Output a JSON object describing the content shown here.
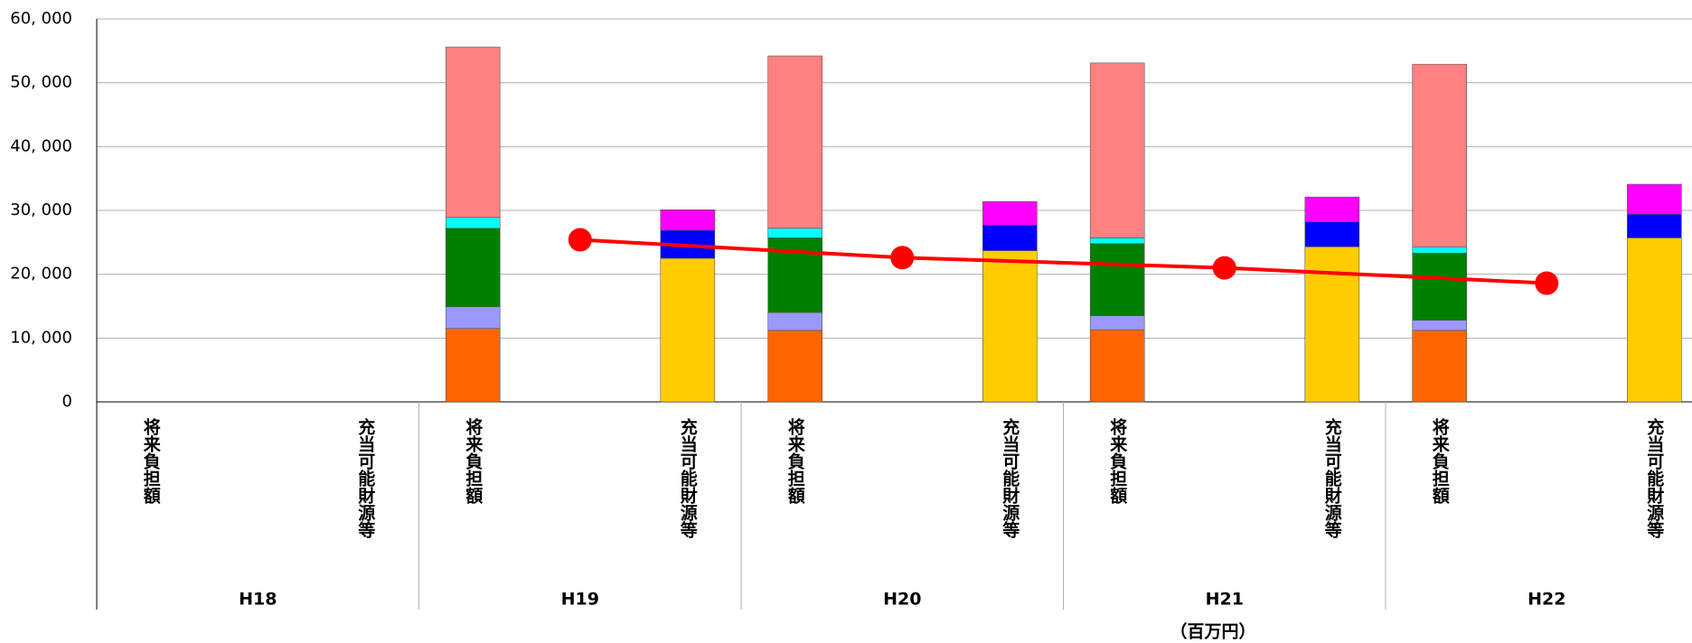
{
  "chart_data": {
    "type": "bar",
    "groups": [
      "H18",
      "H19",
      "H20",
      "H21",
      "H22"
    ],
    "categories": [
      "将来負担額",
      "充当可能財源等",
      "将来負担額",
      "充当可能財源等",
      "将来負担額",
      "充当可能財源等",
      "将来負担額",
      "充当可能財源等",
      "将来負担額",
      "充当可能財源等"
    ],
    "series": [
      {
        "color": "#ff6600",
        "values": [
          null,
          null,
          11500,
          null,
          11200,
          null,
          11300,
          null,
          11200,
          null
        ]
      },
      {
        "color": "#9999ff",
        "values": [
          null,
          null,
          3400,
          null,
          2800,
          null,
          2200,
          null,
          1600,
          null
        ]
      },
      {
        "color": "#008000",
        "values": [
          null,
          null,
          12300,
          null,
          11700,
          null,
          11300,
          null,
          10500,
          null
        ]
      },
      {
        "color": "#00ffff",
        "values": [
          null,
          null,
          1700,
          null,
          1500,
          null,
          900,
          null,
          1000,
          null
        ]
      },
      {
        "color": "#ff8080",
        "values": [
          null,
          null,
          26700,
          null,
          27000,
          null,
          27400,
          null,
          28600,
          null
        ]
      },
      {
        "color": "#ffcc00",
        "values": [
          null,
          null,
          null,
          22500,
          null,
          23700,
          null,
          24300,
          null,
          25700
        ]
      },
      {
        "color": "#0000ff",
        "values": [
          null,
          null,
          null,
          4400,
          null,
          4000,
          null,
          3900,
          null,
          3700
        ]
      },
      {
        "color": "#ff00ff",
        "values": [
          null,
          null,
          null,
          3200,
          null,
          3700,
          null,
          3900,
          null,
          4700
        ]
      }
    ],
    "line": {
      "color": "#ff0000",
      "values": [
        null,
        25400,
        22600,
        21000,
        18600
      ]
    },
    "ylim": [
      0,
      60000
    ],
    "yticks": [
      0,
      {
        "value": 10000,
        "label": "10, 000"
      },
      {
        "value": 20000,
        "label": "20, 000"
      },
      {
        "value": 30000,
        "label": "30, 000"
      },
      {
        "value": 40000,
        "label": "40, 000"
      },
      {
        "value": 50000,
        "label": "50, 000"
      },
      {
        "value": 60000,
        "label": "60, 000"
      }
    ],
    "grid": true,
    "unit_label": "（百万円）"
  }
}
